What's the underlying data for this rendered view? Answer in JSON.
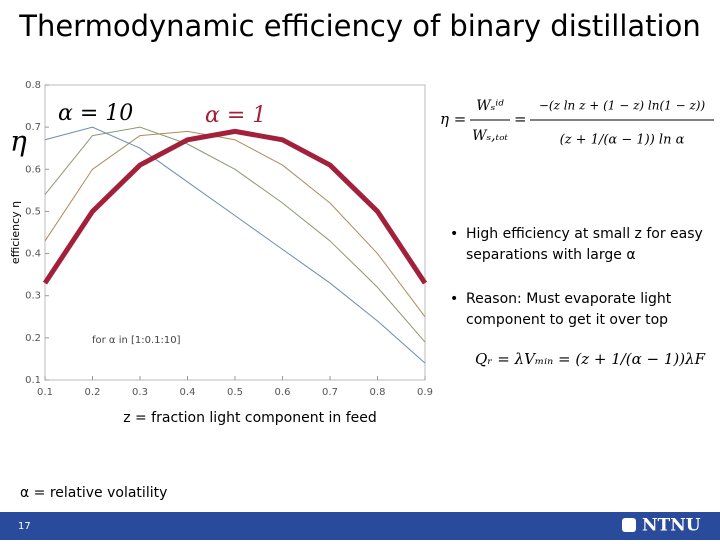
{
  "title": "Thermodynamic efficiency of binary distillation",
  "chart_data": {
    "type": "line",
    "y_label": "efficiency η",
    "annotations": [
      "η",
      "for α in [1:0.1:10]"
    ],
    "x": [
      0.1,
      0.2,
      0.3,
      0.4,
      0.5,
      0.6,
      0.7,
      0.8,
      0.9
    ],
    "series": [
      {
        "name": "α = 1",
        "color": "#a3203a",
        "width": 5,
        "values": [
          0.33,
          0.5,
          0.61,
          0.67,
          0.69,
          0.67,
          0.61,
          0.5,
          0.33
        ]
      },
      {
        "name": "α = 10",
        "color": "#6a8fb0",
        "width": 1,
        "values": [
          0.67,
          0.7,
          0.65,
          0.57,
          0.49,
          0.41,
          0.33,
          0.24,
          0.14
        ]
      },
      {
        "color": "#b08a5a",
        "width": 1,
        "values": [
          0.43,
          0.6,
          0.68,
          0.69,
          0.67,
          0.61,
          0.52,
          0.4,
          0.25
        ]
      },
      {
        "color": "#8a9a70",
        "width": 1,
        "values": [
          0.54,
          0.68,
          0.7,
          0.66,
          0.6,
          0.52,
          0.43,
          0.32,
          0.19
        ]
      }
    ],
    "xlim": [
      0.1,
      0.9
    ],
    "ylim": [
      0.1,
      0.8
    ],
    "xticks": [
      0.1,
      0.2,
      0.3,
      0.4,
      0.5,
      0.6,
      0.7,
      0.8,
      0.9
    ],
    "yticks": [
      0.1,
      0.2,
      0.3,
      0.4,
      0.5,
      0.6,
      0.7,
      0.8
    ]
  },
  "formulas": [
    {
      "lhs": "η =",
      "frac1_num": "Wₛⁱᵈ",
      "frac1_den": "Wₛ,ₜₒₜ",
      "eq": "=",
      "frac2_num": "−(z ln z + (1 − z) ln(1 − z))",
      "frac2_den": "(z + 1/(α − 1)) ln α"
    },
    {
      "text": "Qᵣ = λVₘᵢₙ = (z + 1/(α − 1))λF"
    }
  ],
  "bullets": [
    "High efficiency at small z  for easy separations with large α",
    "Reason: Must evaporate light component to get it over top"
  ],
  "notes": [
    "z = fraction light component in feed",
    "α = relative volatility"
  ],
  "footer": {
    "page": "17",
    "logo": "NTNU"
  }
}
